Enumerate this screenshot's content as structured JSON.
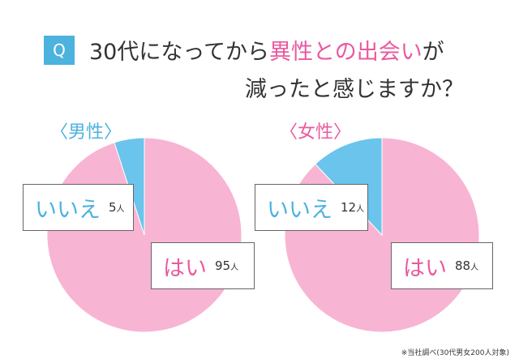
{
  "question": {
    "badge": "Q",
    "line1_part1": "30代になってから",
    "line1_highlight": "異性との出会い",
    "line1_part2": "が",
    "line2": "減ったと感じますか？"
  },
  "colors": {
    "yes": "#f8b4d3",
    "no": "#6bc4ec",
    "accent_blue": "#4cb2de",
    "accent_pink": "#e95a9f"
  },
  "chart_data": [
    {
      "type": "pie",
      "title": "〈男性〉",
      "labels": [
        "はい",
        "いいえ"
      ],
      "values": [
        95,
        5
      ],
      "unit": "人",
      "colors": [
        "#f8b4d3",
        "#6bc4ec"
      ]
    },
    {
      "type": "pie",
      "title": "〈女性〉",
      "labels": [
        "はい",
        "いいえ"
      ],
      "values": [
        88,
        12
      ],
      "unit": "人",
      "colors": [
        "#f8b4d3",
        "#6bc4ec"
      ]
    }
  ],
  "footnote": "※当社調べ(30代男女200人対象)"
}
